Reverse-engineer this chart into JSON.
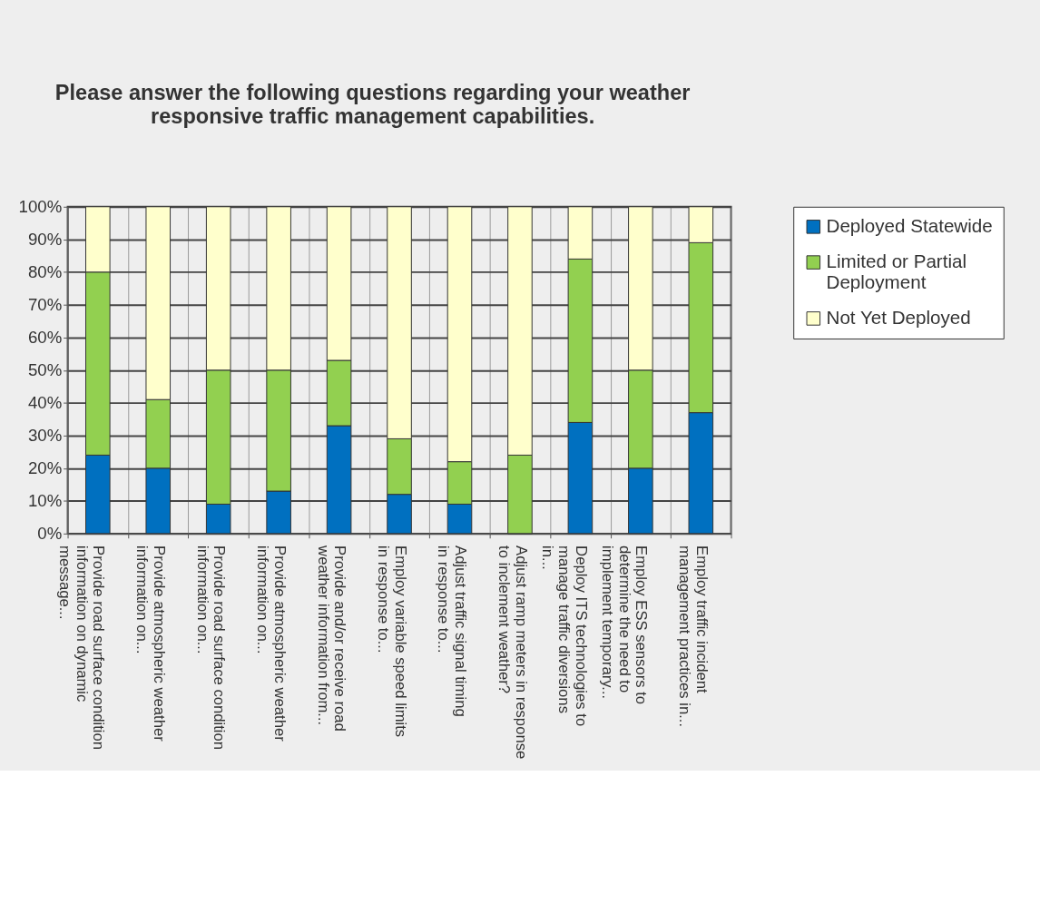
{
  "chart_data": {
    "type": "bar",
    "title": "Please answer the following questions regarding your weather responsive traffic management capabilities.",
    "categories": [
      "Provide road surface condition information on dynamic message...",
      "Provide atmospheric weather information on...",
      "Provide road surface condition information on...",
      "Provide atmospheric weather information on...",
      "Provide and/or receive road weather information from...",
      "Employ variable speed limits in response to...",
      "Adjust traffic signal timing in response to...",
      "Adjust ramp meters in response to inclement weather?",
      "Deploy ITS technologies to manage traffic diversions in...",
      "Employ ESS sensors to determine the need to implement temporary...",
      "Employ traffic incident management practices in..."
    ],
    "series": [
      {
        "name": "Deployed Statewide",
        "color": "#0070c0",
        "values": [
          24,
          20,
          9,
          13,
          33,
          12,
          9,
          0,
          34,
          20,
          37
        ]
      },
      {
        "name": "Limited or Partial Deployment",
        "color": "#92d050",
        "values": [
          56,
          21,
          41,
          37,
          20,
          17,
          13,
          24,
          50,
          30,
          52
        ]
      },
      {
        "name": "Not Yet Deployed",
        "color": "#ffffcc",
        "values": [
          20,
          59,
          50,
          50,
          47,
          71,
          78,
          76,
          16,
          50,
          11
        ]
      }
    ],
    "stacked": true,
    "ylim": [
      0,
      100
    ],
    "yticks": [
      {
        "value": 0,
        "label": "0%"
      },
      {
        "value": 10,
        "label": "10%"
      },
      {
        "value": 20,
        "label": "20%"
      },
      {
        "value": 30,
        "label": "30%"
      },
      {
        "value": 40,
        "label": "40%"
      },
      {
        "value": 50,
        "label": "50%"
      },
      {
        "value": 60,
        "label": "60%"
      },
      {
        "value": 70,
        "label": "70%"
      },
      {
        "value": 80,
        "label": "80%"
      },
      {
        "value": 90,
        "label": "90%"
      },
      {
        "value": 100,
        "label": "100%"
      }
    ],
    "grid": true,
    "legend": "right"
  }
}
